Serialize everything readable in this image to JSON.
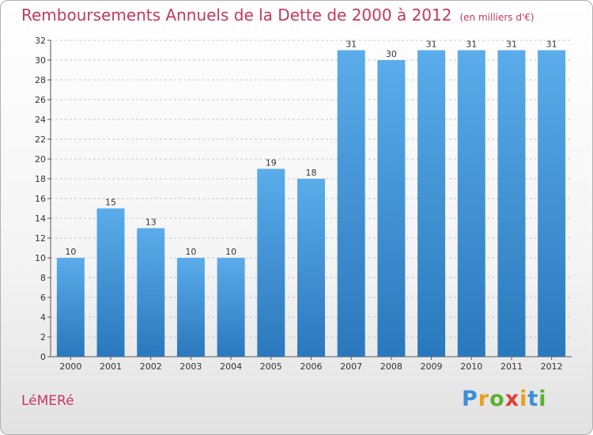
{
  "header": {
    "title": "Remboursements Annuels de la Dette de 2000 à 2012",
    "unit": "(en milliers d'€)"
  },
  "footer": {
    "town": "LéMERé",
    "logo": [
      "P",
      "r",
      "o",
      "x",
      "i",
      "t",
      "i"
    ],
    "logo_colors": [
      "#3a8fd6",
      "#e8a020",
      "#5cb030",
      "#e03c3c",
      "#e8a020",
      "#3a8fd6",
      "#5cb030"
    ]
  },
  "chart_data": {
    "type": "bar",
    "title": "Remboursements Annuels de la Dette de 2000 à 2012",
    "xlabel": "",
    "ylabel": "",
    "categories": [
      "2000",
      "2001",
      "2002",
      "2003",
      "2004",
      "2005",
      "2006",
      "2007",
      "2008",
      "2009",
      "2010",
      "2011",
      "2012"
    ],
    "values": [
      10,
      15,
      13,
      10,
      10,
      19,
      18,
      31,
      30,
      31,
      31,
      31,
      31
    ],
    "ylim": [
      0,
      32
    ],
    "yticks": [
      0,
      2,
      4,
      6,
      8,
      10,
      12,
      14,
      16,
      18,
      20,
      22,
      24,
      26,
      28,
      30,
      32
    ],
    "grid": "horizontal dashed",
    "bar_color": "#4a9ee0",
    "legend": "none"
  }
}
